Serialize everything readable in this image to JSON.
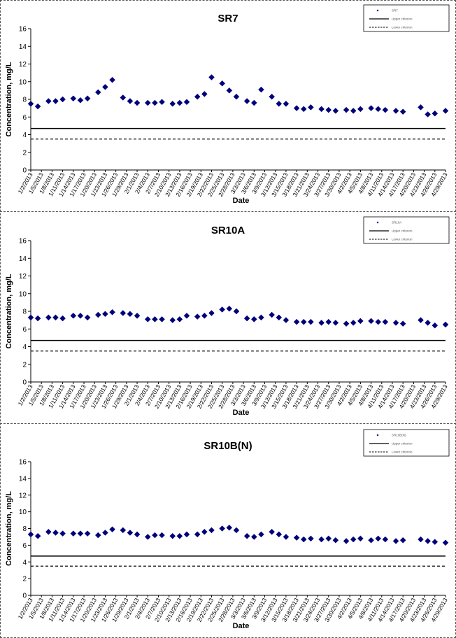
{
  "chart_data": [
    {
      "type": "scatter",
      "title": "SR7",
      "xlabel": "Date",
      "ylabel": "Concentration, mg/L",
      "ylim": [
        0,
        16
      ],
      "yticks": [
        0,
        2,
        4,
        6,
        8,
        10,
        12,
        14,
        16
      ],
      "x_tick_labels": [
        "1/2/2013",
        "1/5/2013",
        "1/8/2013",
        "1/11/2013",
        "1/14/2013",
        "1/17/2013",
        "1/20/2013",
        "1/23/2013",
        "1/26/2013",
        "1/29/2013",
        "2/1/2013",
        "2/4/2013",
        "2/7/2013",
        "2/10/2013",
        "2/13/2013",
        "2/16/2013",
        "2/19/2013",
        "2/22/2013",
        "2/25/2013",
        "2/28/2013",
        "3/3/2013",
        "3/6/2013",
        "3/9/2013",
        "3/12/2013",
        "3/15/2013",
        "3/18/2013",
        "3/21/2013",
        "3/24/2013",
        "3/27/2013",
        "3/30/2013",
        "4/2/2013",
        "4/5/2013",
        "4/8/2013",
        "4/11/2013",
        "4/14/2013",
        "4/17/2013",
        "4/20/2013",
        "4/23/2013",
        "4/26/2013",
        "4/29/2013"
      ],
      "legend": {
        "position": "top-right",
        "entries": [
          "SR7",
          "Upper criterion",
          "Lower criterion"
        ]
      },
      "series": [
        {
          "name": "SR7",
          "marker": "diamond",
          "color": "#00007a",
          "x": [
            "1/2/2013",
            "1/4/2013",
            "1/7/2013",
            "1/9/2013",
            "1/11/2013",
            "1/14/2013",
            "1/16/2013",
            "1/18/2013",
            "1/21/2013",
            "1/23/2013",
            "1/25/2013",
            "1/28/2013",
            "1/30/2013",
            "2/1/2013",
            "2/4/2013",
            "2/6/2013",
            "2/8/2013",
            "2/11/2013",
            "2/13/2013",
            "2/15/2013",
            "2/18/2013",
            "2/20/2013",
            "2/22/2013",
            "2/25/2013",
            "2/27/2013",
            "3/1/2013",
            "3/4/2013",
            "3/6/2013",
            "3/8/2013",
            "3/11/2013",
            "3/13/2013",
            "3/15/2013",
            "3/18/2013",
            "3/20/2013",
            "3/22/2013",
            "3/25/2013",
            "3/27/2013",
            "3/29/2013",
            "4/1/2013",
            "4/3/2013",
            "4/5/2013",
            "4/8/2013",
            "4/10/2013",
            "4/12/2013",
            "4/15/2013",
            "4/17/2013",
            "4/22/2013",
            "4/24/2013",
            "4/26/2013",
            "4/29/2013"
          ],
          "y": [
            7.5,
            7.2,
            7.8,
            7.8,
            8.0,
            8.1,
            7.9,
            8.1,
            8.8,
            9.4,
            10.2,
            8.2,
            7.8,
            7.6,
            7.6,
            7.6,
            7.7,
            7.5,
            7.6,
            7.7,
            8.3,
            8.6,
            10.5,
            9.8,
            9.0,
            8.3,
            7.8,
            7.6,
            9.1,
            8.3,
            7.5,
            7.5,
            7.0,
            6.9,
            7.1,
            6.9,
            6.8,
            6.7,
            6.8,
            6.7,
            6.9,
            7.0,
            6.9,
            6.8,
            6.7,
            6.6,
            7.1,
            6.3,
            6.4,
            6.7
          ]
        },
        {
          "name": "Upper criterion",
          "style": "solid",
          "y": 4.7
        },
        {
          "name": "Lower criterion",
          "style": "dashed",
          "y": 3.5
        }
      ]
    },
    {
      "type": "scatter",
      "title": "SR10A",
      "xlabel": "Date",
      "ylabel": "Concentration, mg/L",
      "ylim": [
        0,
        16
      ],
      "yticks": [
        0,
        2,
        4,
        6,
        8,
        10,
        12,
        14,
        16
      ],
      "x_tick_labels": [
        "1/2/2013",
        "1/5/2013",
        "1/8/2013",
        "1/11/2013",
        "1/14/2013",
        "1/17/2013",
        "1/20/2013",
        "1/23/2013",
        "1/26/2013",
        "1/29/2013",
        "2/1/2013",
        "2/4/2013",
        "2/7/2013",
        "2/10/2013",
        "2/13/2013",
        "2/16/2013",
        "2/19/2013",
        "2/22/2013",
        "2/25/2013",
        "2/28/2013",
        "3/3/2013",
        "3/6/2013",
        "3/9/2013",
        "3/12/2013",
        "3/15/2013",
        "3/18/2013",
        "3/21/2013",
        "3/24/2013",
        "3/27/2013",
        "3/30/2013",
        "4/2/2013",
        "4/5/2013",
        "4/8/2013",
        "4/11/2013",
        "4/14/2013",
        "4/17/2013",
        "4/20/2013",
        "4/23/2013",
        "4/26/2013",
        "4/29/2013"
      ],
      "legend": {
        "position": "top-right",
        "entries": [
          "SR10A",
          "Upper criterion",
          "Lower criterion"
        ]
      },
      "series": [
        {
          "name": "SR10A",
          "marker": "diamond",
          "color": "#00007a",
          "x": [
            "1/2/2013",
            "1/4/2013",
            "1/7/2013",
            "1/9/2013",
            "1/11/2013",
            "1/14/2013",
            "1/16/2013",
            "1/18/2013",
            "1/21/2013",
            "1/23/2013",
            "1/25/2013",
            "1/28/2013",
            "1/30/2013",
            "2/1/2013",
            "2/4/2013",
            "2/6/2013",
            "2/8/2013",
            "2/11/2013",
            "2/13/2013",
            "2/15/2013",
            "2/18/2013",
            "2/20/2013",
            "2/22/2013",
            "2/25/2013",
            "2/27/2013",
            "3/1/2013",
            "3/4/2013",
            "3/6/2013",
            "3/8/2013",
            "3/11/2013",
            "3/13/2013",
            "3/15/2013",
            "3/18/2013",
            "3/20/2013",
            "3/22/2013",
            "3/25/2013",
            "3/27/2013",
            "3/29/2013",
            "4/1/2013",
            "4/3/2013",
            "4/5/2013",
            "4/8/2013",
            "4/10/2013",
            "4/12/2013",
            "4/15/2013",
            "4/17/2013",
            "4/22/2013",
            "4/24/2013",
            "4/26/2013",
            "4/29/2013"
          ],
          "y": [
            7.3,
            7.2,
            7.3,
            7.3,
            7.2,
            7.5,
            7.5,
            7.3,
            7.6,
            7.7,
            7.9,
            7.8,
            7.7,
            7.5,
            7.1,
            7.1,
            7.1,
            7.0,
            7.1,
            7.5,
            7.4,
            7.5,
            7.8,
            8.2,
            8.3,
            8.0,
            7.2,
            7.1,
            7.3,
            7.6,
            7.3,
            7.0,
            6.8,
            6.8,
            6.8,
            6.7,
            6.8,
            6.7,
            6.6,
            6.7,
            6.9,
            6.9,
            6.8,
            6.8,
            6.7,
            6.6,
            7.0,
            6.7,
            6.4,
            6.5
          ]
        },
        {
          "name": "Upper criterion",
          "style": "solid",
          "y": 4.7
        },
        {
          "name": "Lower criterion",
          "style": "dashed",
          "y": 3.5
        }
      ]
    },
    {
      "type": "scatter",
      "title": "SR10B(N)",
      "xlabel": "Date",
      "ylabel": "Concentration, mg/L",
      "ylim": [
        0,
        16
      ],
      "yticks": [
        0,
        2,
        4,
        6,
        8,
        10,
        12,
        14,
        16
      ],
      "x_tick_labels": [
        "1/2/2013",
        "1/5/2013",
        "1/8/2013",
        "1/11/2013",
        "1/14/2013",
        "1/17/2013",
        "1/20/2013",
        "1/23/2013",
        "1/26/2013",
        "1/29/2013",
        "2/1/2013",
        "2/4/2013",
        "2/7/2013",
        "2/10/2013",
        "2/13/2013",
        "2/16/2013",
        "2/19/2013",
        "2/22/2013",
        "2/25/2013",
        "2/28/2013",
        "3/3/2013",
        "3/6/2013",
        "3/9/2013",
        "3/12/2013",
        "3/15/2013",
        "3/18/2013",
        "3/21/2013",
        "3/24/2013",
        "3/27/2013",
        "3/30/2013",
        "4/2/2013",
        "4/5/2013",
        "4/8/2013",
        "4/11/2013",
        "4/14/2013",
        "4/17/2013",
        "4/20/2013",
        "4/23/2013",
        "4/26/2013",
        "4/29/2013"
      ],
      "legend": {
        "position": "top-right",
        "entries": [
          "SR10B(N)",
          "Upper criterion",
          "Lower criterion"
        ]
      },
      "series": [
        {
          "name": "SR10B(N)",
          "marker": "diamond",
          "color": "#00007a",
          "x": [
            "1/2/2013",
            "1/4/2013",
            "1/7/2013",
            "1/9/2013",
            "1/11/2013",
            "1/14/2013",
            "1/16/2013",
            "1/18/2013",
            "1/21/2013",
            "1/23/2013",
            "1/25/2013",
            "1/28/2013",
            "1/30/2013",
            "2/1/2013",
            "2/4/2013",
            "2/6/2013",
            "2/8/2013",
            "2/11/2013",
            "2/13/2013",
            "2/15/2013",
            "2/18/2013",
            "2/20/2013",
            "2/22/2013",
            "2/25/2013",
            "2/27/2013",
            "3/1/2013",
            "3/4/2013",
            "3/6/2013",
            "3/8/2013",
            "3/11/2013",
            "3/13/2013",
            "3/15/2013",
            "3/18/2013",
            "3/20/2013",
            "3/22/2013",
            "3/25/2013",
            "3/27/2013",
            "3/29/2013",
            "4/1/2013",
            "4/3/2013",
            "4/5/2013",
            "4/8/2013",
            "4/10/2013",
            "4/12/2013",
            "4/15/2013",
            "4/17/2013",
            "4/22/2013",
            "4/24/2013",
            "4/26/2013",
            "4/29/2013"
          ],
          "y": [
            7.3,
            7.1,
            7.6,
            7.5,
            7.4,
            7.4,
            7.4,
            7.4,
            7.2,
            7.5,
            7.9,
            7.8,
            7.5,
            7.3,
            7.0,
            7.2,
            7.2,
            7.1,
            7.1,
            7.3,
            7.3,
            7.6,
            7.8,
            8.0,
            8.1,
            7.8,
            7.1,
            7.0,
            7.3,
            7.6,
            7.3,
            7.0,
            6.9,
            6.7,
            6.8,
            6.7,
            6.8,
            6.6,
            6.5,
            6.7,
            6.8,
            6.6,
            6.8,
            6.7,
            6.5,
            6.6,
            6.7,
            6.5,
            6.4,
            6.3
          ]
        },
        {
          "name": "Upper criterion",
          "style": "solid",
          "y": 4.7
        },
        {
          "name": "Lower criterion",
          "style": "dashed",
          "y": 3.5
        }
      ]
    }
  ]
}
